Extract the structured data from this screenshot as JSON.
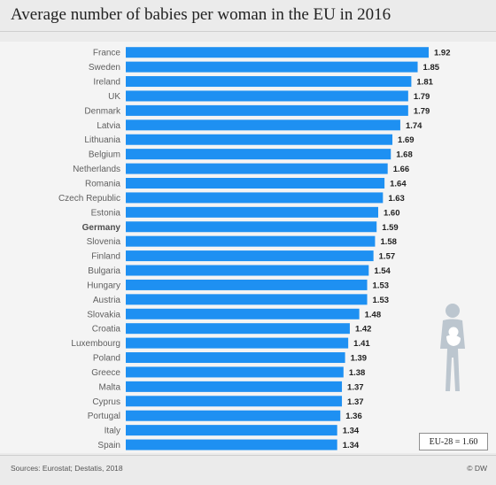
{
  "header": {
    "title": "Average number of babies per woman in the EU in 2016"
  },
  "footer": {
    "source": "Sources: Eurostat; Destatis, 2018",
    "credit": "© DW"
  },
  "annotation": {
    "eu_average": "EU-28 = 1.60"
  },
  "colors": {
    "bar": "#1e90f2",
    "background": "#ebebeb",
    "icon": "#bcc6cf"
  },
  "icons": [
    "mother-with-baby-icon"
  ],
  "chart_data": {
    "type": "bar",
    "orientation": "horizontal",
    "title": "Average number of babies per woman in the EU in 2016",
    "xlabel": "",
    "ylabel": "",
    "xlim": [
      0,
      2.0
    ],
    "grid": false,
    "highlighted_category": "Germany",
    "categories": [
      "France",
      "Sweden",
      "Ireland",
      "UK",
      "Denmark",
      "Latvia",
      "Lithuania",
      "Belgium",
      "Netherlands",
      "Romania",
      "Czech Republic",
      "Estonia",
      "Germany",
      "Slovenia",
      "Finland",
      "Bulgaria",
      "Hungary",
      "Austria",
      "Slovakia",
      "Croatia",
      "Luxembourg",
      "Poland",
      "Greece",
      "Malta",
      "Cyprus",
      "Portugal",
      "Italy",
      "Spain"
    ],
    "values": [
      1.92,
      1.85,
      1.81,
      1.79,
      1.79,
      1.74,
      1.69,
      1.68,
      1.66,
      1.64,
      1.63,
      1.6,
      1.59,
      1.58,
      1.57,
      1.54,
      1.53,
      1.53,
      1.48,
      1.42,
      1.41,
      1.39,
      1.38,
      1.37,
      1.37,
      1.36,
      1.34,
      1.34
    ],
    "value_labels": [
      "1.92",
      "1.85",
      "1.81",
      "1.79",
      "1.79",
      "1.74",
      "1.69",
      "1.68",
      "1.66",
      "1.64",
      "1.63",
      "1.60",
      "1.59",
      "1.58",
      "1.57",
      "1.54",
      "1.53",
      "1.53",
      "1.48",
      "1.42",
      "1.41",
      "1.39",
      "1.38",
      "1.37",
      "1.37",
      "1.36",
      "1.34",
      "1.34"
    ]
  }
}
